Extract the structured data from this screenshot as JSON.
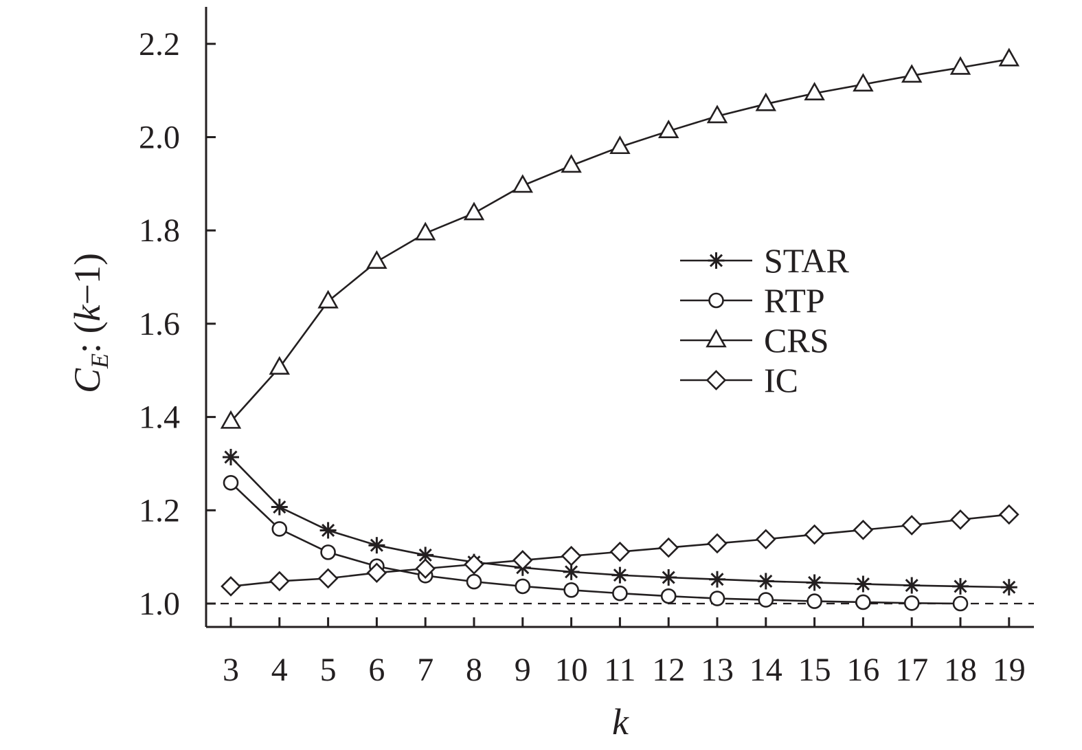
{
  "chart_data": {
    "type": "line",
    "xlabel": "k",
    "ylabel": {
      "base": "C",
      "subscript": "E",
      "rest_prefix": ": (",
      "rest_var": "k",
      "rest_suffix": "−1)"
    },
    "x": [
      3,
      4,
      5,
      6,
      7,
      8,
      9,
      10,
      11,
      12,
      13,
      14,
      15,
      16,
      17,
      18,
      19
    ],
    "x_ticks": [
      "3",
      "4",
      "5",
      "6",
      "7",
      "8",
      "9",
      "10",
      "11",
      "12",
      "13",
      "14",
      "15",
      "16",
      "17",
      "18",
      "19"
    ],
    "ylim": [
      0.95,
      2.27
    ],
    "y_ticks": [
      "1.0",
      "1.2",
      "1.4",
      "1.6",
      "1.8",
      "2.0",
      "2.2"
    ],
    "reference_line": 1.0,
    "legend_position": "center-right",
    "series": [
      {
        "name": "STAR",
        "marker": "asterisk",
        "values": [
          1.314,
          1.207,
          1.157,
          1.125,
          1.104,
          1.089,
          1.077,
          1.068,
          1.061,
          1.056,
          1.052,
          1.048,
          1.045,
          1.042,
          1.039,
          1.037,
          1.035
        ]
      },
      {
        "name": "RTP",
        "marker": "circle",
        "values": [
          1.259,
          1.16,
          1.11,
          1.08,
          1.06,
          1.047,
          1.037,
          1.029,
          1.022,
          1.016,
          1.011,
          1.008,
          1.005,
          1.003,
          1.001,
          1.0,
          null
        ]
      },
      {
        "name": "CRS",
        "marker": "triangle",
        "values": [
          1.39,
          1.506,
          1.648,
          1.733,
          1.794,
          1.837,
          1.896,
          1.939,
          1.979,
          2.013,
          2.045,
          2.071,
          2.094,
          2.113,
          2.132,
          2.149,
          2.167
        ]
      },
      {
        "name": "IC",
        "marker": "diamond",
        "values": [
          1.037,
          1.048,
          1.054,
          1.066,
          1.075,
          1.084,
          1.093,
          1.102,
          1.111,
          1.12,
          1.129,
          1.138,
          1.148,
          1.158,
          1.168,
          1.18,
          1.191
        ]
      }
    ]
  }
}
